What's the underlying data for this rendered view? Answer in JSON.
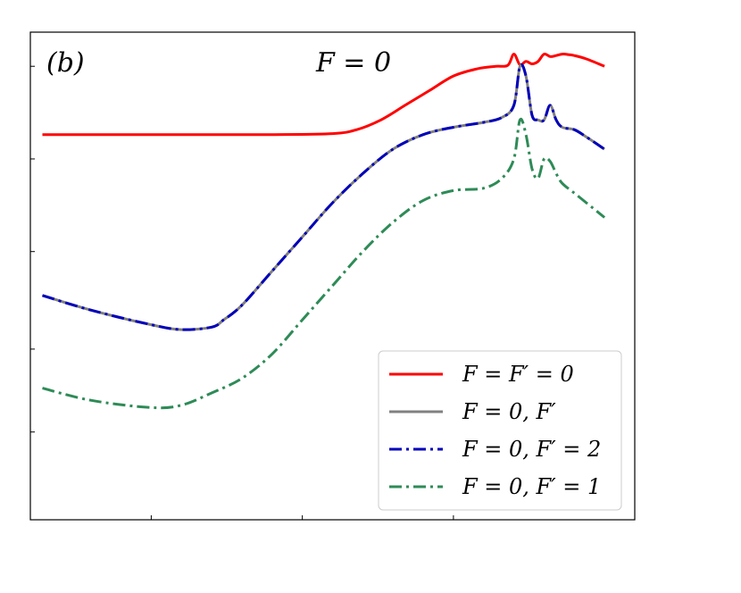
{
  "chart_data": {
    "type": "line",
    "panel_label": "(b)",
    "title": "F = 0",
    "xlabel": "",
    "ylabel": "",
    "xlim": [
      0,
      100
    ],
    "ylim": [
      0,
      100
    ],
    "x_ticks": [
      20,
      45,
      70
    ],
    "y_ticks": [
      18,
      35,
      55,
      74,
      93
    ],
    "grid": false,
    "legend_position": "bottom-right",
    "series": [
      {
        "name": "F = F′ = 0",
        "color": "#ff0000",
        "dash": "solid",
        "x": [
          2,
          10,
          20,
          30,
          40,
          50,
          54,
          58,
          62,
          66,
          70,
          74,
          77,
          79,
          80,
          81,
          82,
          83,
          84,
          85,
          86,
          87,
          88,
          89,
          90,
          92,
          95
        ],
        "y": [
          79,
          79,
          79,
          79,
          79,
          79.2,
          80,
          82,
          85,
          88,
          91,
          92.5,
          93,
          93.2,
          95.5,
          93.3,
          94,
          93.5,
          94,
          95.5,
          95,
          95.2,
          95.5,
          95.4,
          95.2,
          94.5,
          93
        ]
      },
      {
        "name": "F = 0, F′",
        "color": "#808080",
        "dash": "solid",
        "x": [
          2,
          10,
          20,
          25,
          30,
          32,
          35,
          40,
          45,
          50,
          55,
          60,
          65,
          70,
          75,
          78,
          80,
          81,
          82,
          83,
          84,
          85,
          86,
          87,
          88,
          90,
          92,
          95
        ],
        "y": [
          46,
          43,
          40,
          39,
          39.5,
          41,
          44,
          51,
          58,
          65,
          71,
          76,
          79,
          80.5,
          81.5,
          82.5,
          85,
          93,
          91,
          83,
          82,
          82,
          85,
          82,
          80.5,
          80,
          78.5,
          76
        ]
      },
      {
        "name": "F = 0, F′ = 2",
        "color": "#0000bb",
        "dash": "dashdot",
        "x": [
          2,
          10,
          20,
          25,
          30,
          32,
          35,
          40,
          45,
          50,
          55,
          60,
          65,
          70,
          75,
          78,
          80,
          81,
          82,
          83,
          84,
          85,
          86,
          87,
          88,
          90,
          92,
          95
        ],
        "y": [
          46,
          43,
          40,
          39,
          39.5,
          41,
          44,
          51,
          58,
          65,
          71,
          76,
          79,
          80.5,
          81.5,
          82.5,
          85,
          93,
          91,
          83,
          82,
          82,
          85,
          82,
          80.5,
          80,
          78.5,
          76
        ]
      },
      {
        "name": "F = 0, F′ = 1",
        "color": "#2e8b57",
        "dash": "dashdot",
        "x": [
          2,
          10,
          20,
          25,
          30,
          35,
          40,
          45,
          50,
          55,
          60,
          65,
          70,
          75,
          78,
          80,
          81,
          82,
          83,
          84,
          85,
          86,
          87,
          88,
          90,
          92,
          95
        ],
        "y": [
          27,
          24.5,
          23,
          23.5,
          26,
          29,
          34,
          41,
          48,
          55,
          61,
          65.5,
          67.5,
          68,
          70,
          74,
          82,
          79,
          72,
          70,
          74,
          73.5,
          71,
          69,
          67,
          65,
          62
        ]
      }
    ]
  }
}
